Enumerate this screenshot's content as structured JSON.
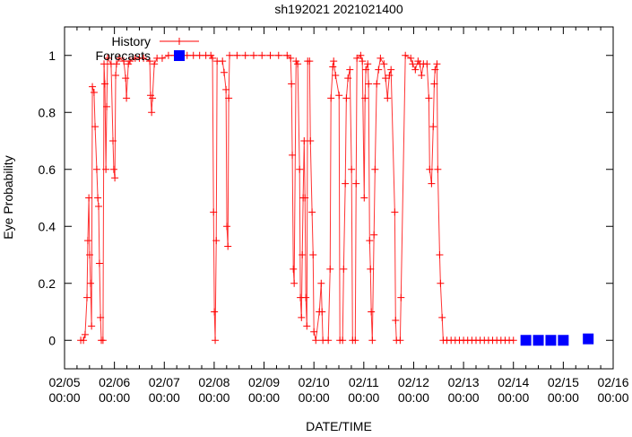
{
  "chart_data": {
    "type": "line",
    "title": "sh192021 2021021400",
    "xlabel": "DATE/TIME",
    "ylabel": "Eye Probability",
    "x_units": "hours since 02/05 00:00",
    "xlim": [
      0,
      264
    ],
    "ylim": [
      -0.1,
      1.1
    ],
    "yticks": [
      0,
      0.2,
      0.4,
      0.6,
      0.8,
      1
    ],
    "ytick_labels": [
      "0",
      "0.2",
      "0.4",
      "0.6",
      "0.8",
      "1"
    ],
    "xticks": [
      0,
      24,
      48,
      72,
      96,
      120,
      144,
      168,
      192,
      216,
      240,
      264
    ],
    "xtick_labels": [
      [
        "02/05",
        "00:00"
      ],
      [
        "02/06",
        "00:00"
      ],
      [
        "02/07",
        "00:00"
      ],
      [
        "02/08",
        "00:00"
      ],
      [
        "02/09",
        "00:00"
      ],
      [
        "02/10",
        "00:00"
      ],
      [
        "02/11",
        "00:00"
      ],
      [
        "02/12",
        "00:00"
      ],
      [
        "02/13",
        "00:00"
      ],
      [
        "02/14",
        "00:00"
      ],
      [
        "02/15",
        "00:00"
      ],
      [
        "02/16",
        "00:00"
      ]
    ],
    "legend_position": "top-left",
    "series": [
      {
        "name": "History",
        "color": "#ff0000",
        "style": "lines+crosses",
        "points": [
          [
            7.8,
            0
          ],
          [
            9.1,
            0
          ],
          [
            9.9,
            0.02
          ],
          [
            10.8,
            0.15
          ],
          [
            11.2,
            0.35
          ],
          [
            11.7,
            0.5
          ],
          [
            12.1,
            0.3
          ],
          [
            12.5,
            0.2
          ],
          [
            13.0,
            0.05
          ],
          [
            13.4,
            0.89
          ],
          [
            14.2,
            0.87
          ],
          [
            14.7,
            0.75
          ],
          [
            15.5,
            0.6
          ],
          [
            16.0,
            0.5
          ],
          [
            16.4,
            0.47
          ],
          [
            16.8,
            0.27
          ],
          [
            17.3,
            0.08
          ],
          [
            17.7,
            0
          ],
          [
            18.5,
            0
          ],
          [
            19.0,
            0.97
          ],
          [
            19.4,
            0.9
          ],
          [
            19.9,
            0.6
          ],
          [
            20.3,
            0.82
          ],
          [
            20.7,
            0.99
          ],
          [
            22.4,
            0.97
          ],
          [
            23.3,
            0.7
          ],
          [
            23.7,
            0.6
          ],
          [
            24.2,
            0.57
          ],
          [
            24.6,
            0.93
          ],
          [
            25.0,
            0.97
          ],
          [
            26.3,
            0.99
          ],
          [
            28.5,
            0.98
          ],
          [
            29.4,
            0.92
          ],
          [
            29.8,
            0.85
          ],
          [
            30.7,
            0.97
          ],
          [
            31.5,
            0.98
          ],
          [
            34,
            0.99
          ],
          [
            36,
            0.99
          ],
          [
            38.0,
            0.99
          ],
          [
            41.0,
            0.98
          ],
          [
            41.4,
            0.86
          ],
          [
            41.9,
            0.8
          ],
          [
            42.3,
            0.85
          ],
          [
            43.2,
            0.97
          ],
          [
            44.5,
            0.99
          ],
          [
            47,
            0.99
          ],
          [
            50,
            1
          ],
          [
            53,
            1
          ],
          [
            56,
            1
          ],
          [
            59,
            1
          ],
          [
            62,
            1
          ],
          [
            65,
            1
          ],
          [
            68,
            1
          ],
          [
            70.4,
            1
          ],
          [
            71.2,
            0.99
          ],
          [
            71.7,
            0.45
          ],
          [
            72.1,
            0.1
          ],
          [
            72.5,
            0
          ],
          [
            73.0,
            0.35
          ],
          [
            73.4,
            0.98
          ],
          [
            76.0,
            0.98
          ],
          [
            76.8,
            0.94
          ],
          [
            77.7,
            0.88
          ],
          [
            78.1,
            0.4
          ],
          [
            78.6,
            0.33
          ],
          [
            79.0,
            0.85
          ],
          [
            79.4,
            1
          ],
          [
            83,
            1
          ],
          [
            87,
            1
          ],
          [
            91,
            1
          ],
          [
            95,
            1
          ],
          [
            99,
            1
          ],
          [
            103,
            1
          ],
          [
            107.1,
            1
          ],
          [
            108.8,
            0.99
          ],
          [
            109.2,
            0.9
          ],
          [
            109.6,
            0.65
          ],
          [
            110.1,
            0.25
          ],
          [
            110.5,
            0.2
          ],
          [
            111.4,
            0.98
          ],
          [
            112.2,
            0.97
          ],
          [
            113.1,
            0.6
          ],
          [
            113.5,
            0.15
          ],
          [
            114.0,
            0.08
          ],
          [
            114.4,
            0.3
          ],
          [
            114.8,
            0.5
          ],
          [
            115.3,
            0.7
          ],
          [
            115.7,
            0.5
          ],
          [
            116.1,
            0.15
          ],
          [
            116.6,
            0.05
          ],
          [
            117.0,
            0.98
          ],
          [
            117.9,
            0.98
          ],
          [
            118.3,
            0.7
          ],
          [
            119.1,
            0.45
          ],
          [
            119.6,
            0.3
          ],
          [
            120.0,
            0.03
          ],
          [
            120.9,
            0
          ],
          [
            122.6,
            0.1
          ],
          [
            123.5,
            0.2
          ],
          [
            123.9,
            0.1
          ],
          [
            124.3,
            0
          ],
          [
            126.9,
            0
          ],
          [
            127.8,
            0.25
          ],
          [
            128.2,
            0.85
          ],
          [
            129.1,
            0.96
          ],
          [
            129.5,
            0.98
          ],
          [
            130.4,
            0.93
          ],
          [
            132.1,
            0.86
          ],
          [
            132.5,
            0
          ],
          [
            133.8,
            0
          ],
          [
            134.3,
            0.25
          ],
          [
            135.1,
            0.55
          ],
          [
            135.6,
            0.85
          ],
          [
            136.4,
            0.92
          ],
          [
            137.3,
            0.95
          ],
          [
            138.1,
            0.6
          ],
          [
            138.6,
            0
          ],
          [
            139.9,
            0
          ],
          [
            140.3,
            0.55
          ],
          [
            140.7,
            0.99
          ],
          [
            142.5,
            1
          ],
          [
            143.3,
            0.98
          ],
          [
            144.2,
            0.5
          ],
          [
            144.6,
            0.85
          ],
          [
            145.0,
            0.95
          ],
          [
            145.9,
            0.97
          ],
          [
            146.3,
            0.9
          ],
          [
            146.8,
            0.35
          ],
          [
            147.2,
            0.25
          ],
          [
            147.6,
            0.1
          ],
          [
            148.1,
            0
          ],
          [
            148.9,
            0.37
          ],
          [
            149.4,
            0.6
          ],
          [
            150.2,
            0.9
          ],
          [
            151.1,
            0.95
          ],
          [
            152.0,
            0.99
          ],
          [
            153.7,
            0.97
          ],
          [
            154.5,
            0.92
          ],
          [
            155.4,
            0.85
          ],
          [
            156.3,
            0.93
          ],
          [
            157.1,
            0.95
          ],
          [
            158.9,
            0.45
          ],
          [
            159.3,
            0.07
          ],
          [
            159.7,
            0
          ],
          [
            161.5,
            0
          ],
          [
            161.9,
            0.15
          ],
          [
            164.0,
            1
          ],
          [
            166.6,
            0.99
          ],
          [
            167.5,
            0.97
          ],
          [
            168.8,
            0.95
          ],
          [
            170.1,
            0.98
          ],
          [
            171.0,
            0.97
          ],
          [
            171.8,
            0.93
          ],
          [
            172.7,
            0.97
          ],
          [
            174.4,
            0.97
          ],
          [
            175.3,
            0.85
          ],
          [
            175.7,
            0.6
          ],
          [
            176.6,
            0.55
          ],
          [
            177.4,
            0.75
          ],
          [
            177.9,
            0.9
          ],
          [
            178.3,
            0.95
          ],
          [
            179.2,
            0.97
          ],
          [
            179.6,
            0.6
          ],
          [
            180.5,
            0.3
          ],
          [
            180.9,
            0.2
          ],
          [
            181.7,
            0.08
          ],
          [
            182.2,
            0
          ],
          [
            184,
            0
          ],
          [
            186,
            0
          ],
          [
            188,
            0
          ],
          [
            190,
            0
          ],
          [
            192,
            0
          ],
          [
            194,
            0
          ],
          [
            196,
            0
          ],
          [
            198,
            0
          ],
          [
            200,
            0
          ],
          [
            202,
            0
          ],
          [
            204,
            0
          ],
          [
            206,
            0
          ],
          [
            208,
            0
          ],
          [
            210,
            0
          ],
          [
            212,
            0
          ],
          [
            214,
            0
          ],
          [
            216,
            0
          ]
        ]
      },
      {
        "name": "Forecasts",
        "color": "#0000ff",
        "style": "filled-squares",
        "points": [
          [
            222,
            0
          ],
          [
            228,
            0
          ],
          [
            234,
            0
          ],
          [
            240,
            0
          ],
          [
            252,
            0.005
          ]
        ]
      }
    ]
  }
}
